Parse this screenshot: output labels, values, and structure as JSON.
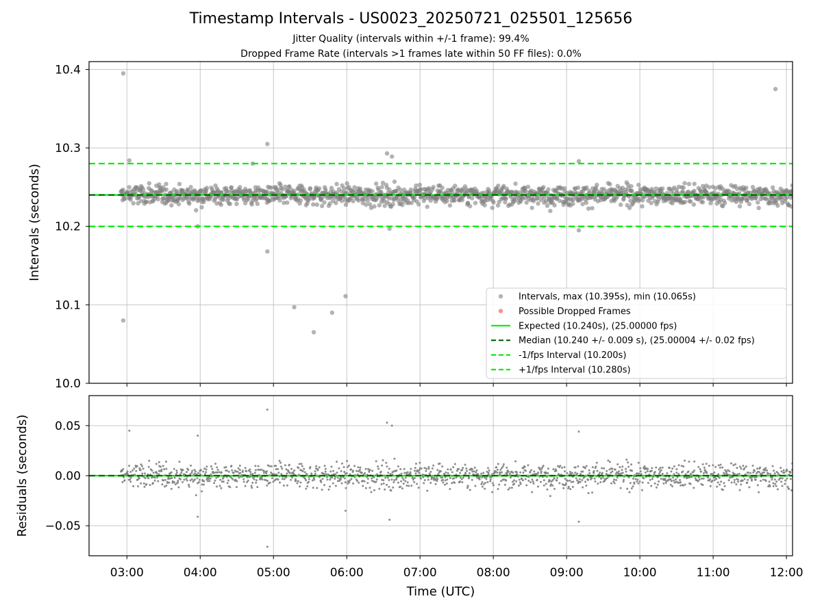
{
  "header": {
    "title": "Timestamp Intervals - US0023_20250721_025501_125656",
    "subtitle_jitter": "Jitter Quality (intervals within +/-1 frame): 99.4%",
    "subtitle_dropped": "Dropped Frame Rate (intervals >1 frames late within 50 FF files): 0.0%"
  },
  "colors": {
    "points": "#808080",
    "dropped": "#ff4444",
    "expected": "#00ee00",
    "median": "#006400",
    "bounds": "#00ee00",
    "grid": "#b0b0b0"
  },
  "chart_data": [
    {
      "type": "scatter",
      "panel": "top",
      "ylabel": "Intervals (seconds)",
      "xlabel": "",
      "ylim": [
        10.0,
        10.41
      ],
      "yticks": [
        "10.0",
        "10.1",
        "10.2",
        "10.3",
        "10.4"
      ],
      "ytick_values": [
        10.0,
        10.1,
        10.2,
        10.3,
        10.4
      ],
      "grid": true,
      "legend_position": "lower-right",
      "hlines": [
        {
          "name": "Expected (10.240s), (25.00000 fps)",
          "value": 10.24,
          "style": "solid"
        },
        {
          "name": "Median (10.240 +/- 0.009 s), (25.00004 +/- 0.02 fps)",
          "value": 10.24,
          "style": "dashed"
        },
        {
          "name": "-1/fps Interval (10.200s)",
          "value": 10.2,
          "style": "dashed"
        },
        {
          "name": "+1/fps Interval (10.280s)",
          "value": 10.28,
          "style": "dashed"
        }
      ],
      "series": [
        {
          "name": "Intervals, max (10.395s), min (10.065s)",
          "center": 10.24,
          "spread": 0.009,
          "count": 1600
        },
        {
          "name": "Possible Dropped Frames",
          "values": []
        }
      ],
      "outliers": [
        {
          "x": "02:57",
          "y": 10.395
        },
        {
          "x": "02:57",
          "y": 10.08
        },
        {
          "x": "03:02",
          "y": 10.284
        },
        {
          "x": "04:55",
          "y": 10.305
        },
        {
          "x": "04:55",
          "y": 10.168
        },
        {
          "x": "05:17",
          "y": 10.097
        },
        {
          "x": "05:33",
          "y": 10.065
        },
        {
          "x": "05:48",
          "y": 10.09
        },
        {
          "x": "05:59",
          "y": 10.111
        },
        {
          "x": "06:33",
          "y": 10.293
        },
        {
          "x": "06:37",
          "y": 10.289
        },
        {
          "x": "06:35",
          "y": 10.197
        },
        {
          "x": "09:10",
          "y": 10.283
        },
        {
          "x": "09:10",
          "y": 10.195
        },
        {
          "x": "11:51",
          "y": 10.375
        },
        {
          "x": "04:43",
          "y": 10.28
        },
        {
          "x": "03:58",
          "y": 10.2
        }
      ],
      "legend": [
        {
          "label": "Intervals, max (10.395s), min (10.065s)",
          "kind": "marker",
          "color": "#808080"
        },
        {
          "label": "Possible Dropped Frames",
          "kind": "marker",
          "color": "#ff4444"
        },
        {
          "label": "Expected (10.240s), (25.00000 fps)",
          "kind": "solid",
          "color": "#00ee00"
        },
        {
          "label": "Median (10.240 +/- 0.009 s), (25.00004 +/- 0.02 fps)",
          "kind": "dashed",
          "color": "#006400"
        },
        {
          "label": "-1/fps Interval (10.200s)",
          "kind": "dashed",
          "color": "#00ee00"
        },
        {
          "label": "+1/fps Interval (10.280s)",
          "kind": "dashed",
          "color": "#00ee00"
        }
      ]
    },
    {
      "type": "scatter",
      "panel": "bottom",
      "ylabel": "Residuals (seconds)",
      "xlabel": "Time (UTC)",
      "ylim": [
        -0.08,
        0.08
      ],
      "yticks": [
        "0.05",
        "0.00",
        "−0.05"
      ],
      "ytick_values": [
        0.05,
        0.0,
        -0.05
      ],
      "grid": true,
      "hlines": [
        {
          "value": 0.0,
          "style": "solid"
        },
        {
          "value": 0.0,
          "style": "dashed"
        }
      ],
      "series": [
        {
          "name": "",
          "center": 0.0,
          "spread": 0.009,
          "count": 1600
        }
      ],
      "outliers": [
        {
          "x": "02:57",
          "y": 0.0
        },
        {
          "x": "03:02",
          "y": 0.045
        },
        {
          "x": "04:55",
          "y": 0.066
        },
        {
          "x": "04:55",
          "y": -0.071
        },
        {
          "x": "06:33",
          "y": 0.053
        },
        {
          "x": "06:37",
          "y": 0.05
        },
        {
          "x": "06:35",
          "y": -0.044
        },
        {
          "x": "09:10",
          "y": 0.044
        },
        {
          "x": "09:10",
          "y": -0.046
        },
        {
          "x": "03:58",
          "y": 0.04
        },
        {
          "x": "03:58",
          "y": -0.041
        },
        {
          "x": "05:59",
          "y": -0.035
        }
      ]
    }
  ],
  "x_axis": {
    "start": "02:29",
    "end": "12:05",
    "data_start": "02:55",
    "data_end": "12:56",
    "ticks": [
      "03:00",
      "04:00",
      "05:00",
      "06:00",
      "07:00",
      "08:00",
      "09:00",
      "10:00",
      "11:00",
      "12:00"
    ]
  }
}
